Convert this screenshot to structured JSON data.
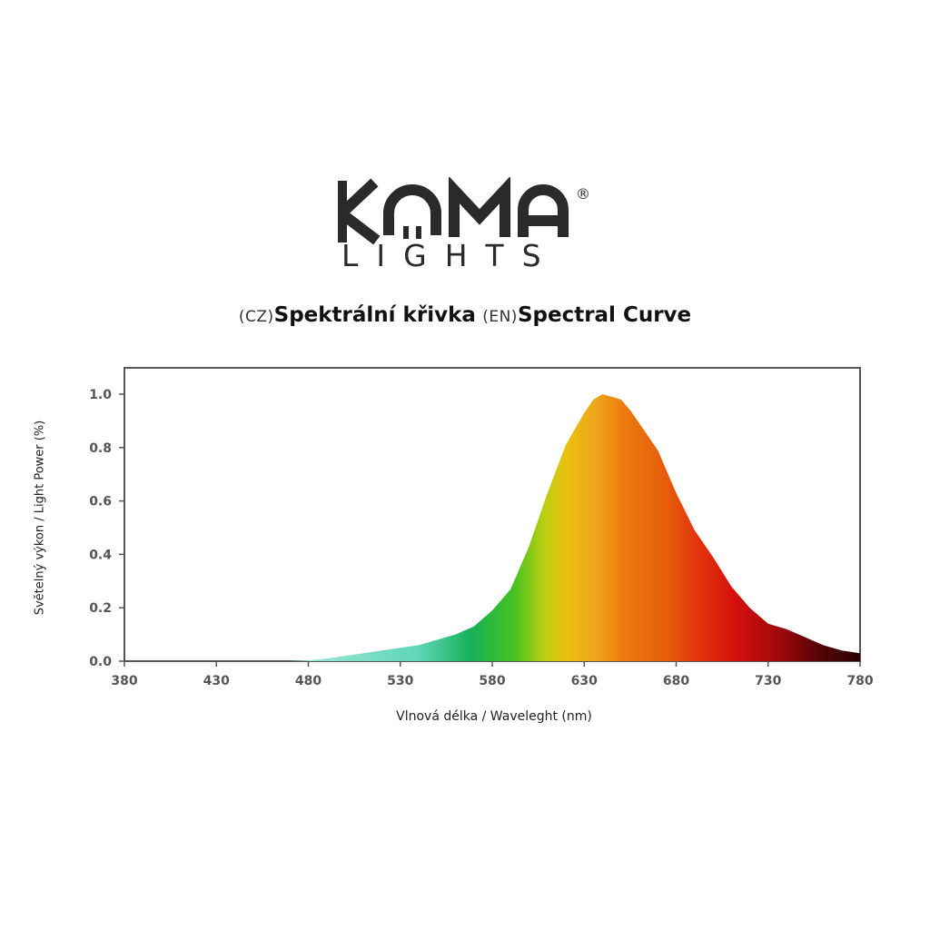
{
  "brand": {
    "logo_text": "KOMA",
    "logo_subtext": "LIGHTS",
    "registered_mark": "®"
  },
  "heading": {
    "cz_tag": "(CZ)",
    "cz_title": "Spektrální křivka",
    "en_tag": "(EN)",
    "en_title": "Spectral Curve"
  },
  "colors": {
    "text": "#111111",
    "axis": "#555555"
  },
  "chart_data": {
    "type": "area",
    "xlabel": "Vlnová délka / Waveleght (nm)",
    "ylabel": "Světelný výkon / Light Power (%)",
    "xlim": [
      380,
      780
    ],
    "ylim": [
      0,
      1.1
    ],
    "x_ticks": [
      380,
      430,
      480,
      530,
      580,
      630,
      680,
      730,
      780
    ],
    "y_ticks": [
      "0.0",
      "0.2",
      "0.4",
      "0.6",
      "0.8",
      "1.0"
    ],
    "grid": false,
    "fill": "wavelength spectrum gradient",
    "x": [
      380,
      470,
      480,
      490,
      500,
      510,
      520,
      530,
      540,
      550,
      560,
      570,
      580,
      590,
      600,
      610,
      620,
      630,
      635,
      640,
      645,
      650,
      655,
      660,
      670,
      680,
      690,
      700,
      710,
      720,
      730,
      740,
      750,
      760,
      770,
      780
    ],
    "y": [
      0.0,
      0.0,
      0.003,
      0.01,
      0.02,
      0.03,
      0.04,
      0.05,
      0.06,
      0.08,
      0.1,
      0.13,
      0.19,
      0.27,
      0.43,
      0.63,
      0.81,
      0.93,
      0.98,
      1.0,
      0.99,
      0.98,
      0.94,
      0.89,
      0.79,
      0.63,
      0.49,
      0.39,
      0.28,
      0.2,
      0.14,
      0.12,
      0.09,
      0.06,
      0.04,
      0.03
    ]
  }
}
